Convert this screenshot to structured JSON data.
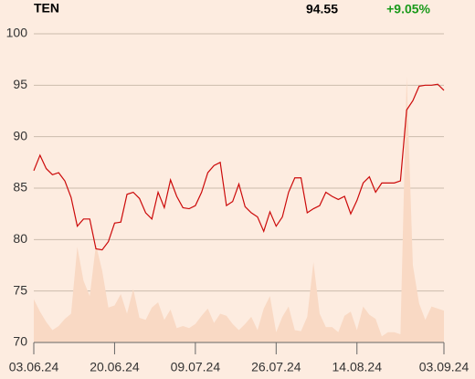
{
  "chart_data": {
    "type": "line",
    "ticker": "TEN",
    "last_price": "94.55",
    "change": "+9.05%",
    "categories": [
      "03.06.24",
      null,
      null,
      null,
      null,
      null,
      null,
      null,
      null,
      null,
      null,
      null,
      null,
      "20.06.24",
      null,
      null,
      null,
      null,
      null,
      null,
      null,
      null,
      null,
      null,
      null,
      null,
      "09.07.24",
      null,
      null,
      null,
      null,
      null,
      null,
      null,
      null,
      null,
      null,
      null,
      null,
      "26.07.24",
      null,
      null,
      null,
      null,
      null,
      null,
      null,
      null,
      null,
      null,
      null,
      null,
      "14.08.24",
      null,
      null,
      null,
      null,
      null,
      null,
      null,
      null,
      null,
      null,
      null,
      null,
      null,
      "03.09.24"
    ],
    "series": [
      {
        "color": "#cc0a0a",
        "values": [
          86.7,
          88.2,
          86.9,
          86.3,
          86.5,
          85.7,
          84.1,
          81.3,
          82.0,
          82.0,
          79.1,
          79.0,
          79.8,
          81.6,
          81.7,
          84.4,
          84.6,
          84.0,
          82.6,
          82.0,
          84.6,
          83.1,
          85.8,
          84.2,
          83.1,
          83.0,
          83.3,
          84.6,
          86.5,
          87.2,
          87.5,
          83.3,
          83.7,
          85.4,
          83.2,
          82.6,
          82.2,
          80.8,
          82.7,
          81.3,
          82.2,
          84.6,
          86.0,
          86.0,
          82.6,
          83.0,
          83.3,
          84.6,
          84.2,
          83.9,
          84.2,
          82.5,
          83.8,
          85.5,
          86.1,
          84.6,
          85.5,
          85.5,
          85.5,
          85.7,
          92.6,
          93.5,
          94.9,
          95.0,
          95.0,
          95.1,
          94.5
        ]
      }
    ],
    "volume": {
      "color": "#f9d9c4",
      "values": [
        74.2,
        73.0,
        72.0,
        71.2,
        71.6,
        72.3,
        72.8,
        79.3,
        76.0,
        74.5,
        79.5,
        77.0,
        73.4,
        73.6,
        74.7,
        72.8,
        75.2,
        72.4,
        72.2,
        73.4,
        73.9,
        72.2,
        73.2,
        71.4,
        71.6,
        71.4,
        71.8,
        72.6,
        73.3,
        71.9,
        72.8,
        72.6,
        71.8,
        71.2,
        71.8,
        72.5,
        71.2,
        73.3,
        74.5,
        71.0,
        72.5,
        73.5,
        71.2,
        71.1,
        72.5,
        77.8,
        72.8,
        71.5,
        71.5,
        71.0,
        72.6,
        73.0,
        71.2,
        73.5,
        72.7,
        72.3,
        70.6,
        71.0,
        71.0,
        70.8,
        95.9,
        77.5,
        73.8,
        72.2,
        73.5,
        73.3,
        73.1
      ]
    },
    "ylim": [
      70,
      100
    ],
    "yticks": [
      70,
      75,
      80,
      85,
      90,
      95,
      100
    ],
    "grid": true
  }
}
